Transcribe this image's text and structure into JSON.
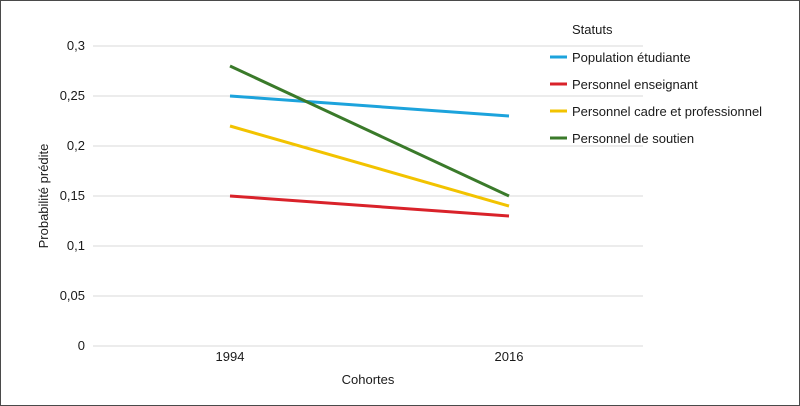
{
  "chart_data": {
    "type": "line",
    "categories": [
      "1994",
      "2016"
    ],
    "xlabel": "Cohortes",
    "ylabel": "Probabilité prédite",
    "ylim": [
      0,
      0.3
    ],
    "yticks": [
      "0",
      "0,05",
      "0,1",
      "0,15",
      "0,2",
      "0,25",
      "0,3"
    ],
    "yticks_values": [
      0,
      0.05,
      0.1,
      0.15,
      0.2,
      0.25,
      0.3
    ],
    "grid": true,
    "legend_title": "Statuts",
    "legend_position": "top-right",
    "series": [
      {
        "name": "Population étudiante",
        "values": [
          0.25,
          0.23
        ],
        "color": "#1ca3dc"
      },
      {
        "name": "Personnel enseignant",
        "values": [
          0.15,
          0.13
        ],
        "color": "#d9222a"
      },
      {
        "name": "Personnel cadre et professionnel",
        "values": [
          0.22,
          0.14
        ],
        "color": "#f2c300"
      },
      {
        "name": "Personnel  de soutien",
        "values": [
          0.28,
          0.15
        ],
        "color": "#3a7a2a"
      }
    ]
  }
}
